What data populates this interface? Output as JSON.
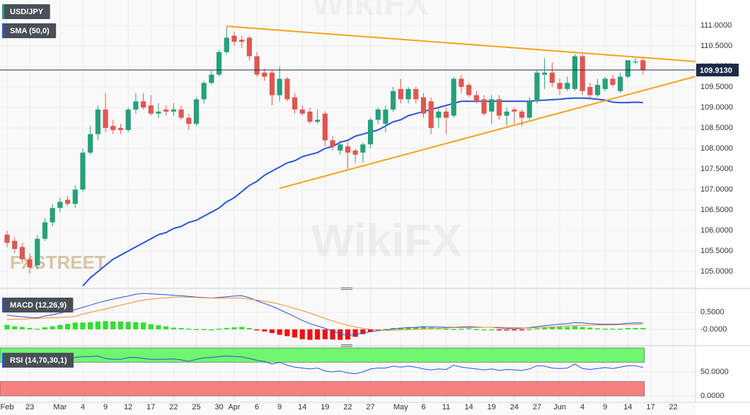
{
  "chart_data": {
    "type": "candlestick",
    "title": "USD/JPY",
    "up_color": "#26a07c",
    "down_color": "#e0574f",
    "categories": [
      "Feb",
      null,
      null,
      "23",
      null,
      null,
      null,
      "Mar",
      null,
      null,
      "4",
      null,
      null,
      "9",
      null,
      null,
      "12",
      null,
      null,
      "17",
      null,
      null,
      "22",
      null,
      null,
      "25",
      null,
      null,
      "30",
      null,
      "Apr",
      null,
      null,
      "6",
      null,
      null,
      "9",
      null,
      null,
      "14",
      null,
      null,
      "19",
      null,
      null,
      "22",
      null,
      null,
      "27",
      null,
      null,
      null,
      "May",
      null,
      null,
      "6",
      null,
      null,
      "11",
      null,
      null,
      "14",
      null,
      null,
      "19",
      null,
      null,
      "24",
      null,
      null,
      "27",
      null,
      null,
      "Jun",
      null,
      null,
      "4",
      null,
      null,
      "9",
      null,
      null,
      "14",
      null,
      null,
      "17",
      null,
      null,
      "22"
    ],
    "open": [
      105.9,
      105.75,
      105.6,
      105.3,
      105.15,
      105.8,
      106.2,
      106.55,
      106.75,
      106.65,
      107.0,
      107.9,
      108.35,
      108.95,
      108.55,
      108.5,
      108.45,
      108.95,
      109.15,
      109.05,
      108.85,
      108.95,
      108.9,
      108.95,
      108.75,
      108.6,
      109.2,
      109.6,
      109.8,
      110.35,
      110.75,
      110.65,
      110.7,
      110.25,
      109.85,
      109.85,
      109.3,
      109.7,
      109.25,
      108.95,
      108.9,
      108.65,
      108.85,
      108.2,
      107.95,
      108.05,
      107.95,
      107.9,
      108.1,
      108.7,
      108.6,
      108.95,
      109.45,
      109.2,
      109.45,
      109.25,
      109.15,
      108.75,
      108.9,
      108.8,
      109.7,
      109.55,
      109.3,
      109.2,
      108.9,
      109.2,
      108.8,
      108.95,
      108.9,
      108.75,
      109.15,
      109.8,
      109.85,
      109.6,
      109.45,
      109.45,
      110.25,
      109.5,
      109.3,
      109.45,
      109.7,
      109.4,
      109.75,
      110.1,
      110.15,
      null,
      null,
      null,
      null
    ],
    "high": [
      106.0,
      105.85,
      105.7,
      105.45,
      105.9,
      106.3,
      106.65,
      106.8,
      106.85,
      107.1,
      108.0,
      108.55,
      109.05,
      109.35,
      108.7,
      108.6,
      109.0,
      109.35,
      109.35,
      109.3,
      109.1,
      109.05,
      109.1,
      109.05,
      108.85,
      109.25,
      109.65,
      109.9,
      110.4,
      110.97,
      110.85,
      110.75,
      110.75,
      110.35,
      109.95,
      109.9,
      110.0,
      109.75,
      109.35,
      109.05,
      109.0,
      108.95,
      108.9,
      108.3,
      108.2,
      108.15,
      108.0,
      108.15,
      108.75,
      109.0,
      109.05,
      109.5,
      109.7,
      109.5,
      109.5,
      109.35,
      109.25,
      109.0,
      109.0,
      109.75,
      109.8,
      109.6,
      109.4,
      109.3,
      109.3,
      109.3,
      109.0,
      109.0,
      108.95,
      109.25,
      109.9,
      110.2,
      110.1,
      109.7,
      109.75,
      110.3,
      110.3,
      109.6,
      109.7,
      109.75,
      109.8,
      109.85,
      110.15,
      110.2,
      110.2,
      null,
      null,
      null,
      null
    ],
    "low": [
      105.6,
      105.45,
      105.2,
      104.95,
      105.05,
      105.75,
      106.1,
      106.45,
      106.6,
      106.55,
      106.95,
      107.85,
      108.2,
      108.4,
      108.35,
      108.35,
      108.4,
      108.85,
      108.95,
      108.8,
      108.75,
      108.8,
      108.8,
      108.7,
      108.45,
      108.55,
      109.1,
      109.55,
      109.75,
      110.3,
      110.5,
      110.45,
      110.15,
      109.75,
      109.65,
      109.05,
      109.15,
      109.15,
      108.85,
      108.8,
      108.6,
      108.6,
      108.05,
      107.95,
      107.85,
      107.5,
      107.65,
      107.65,
      108.0,
      108.6,
      108.4,
      108.9,
      109.1,
      109.1,
      109.1,
      108.75,
      108.35,
      108.5,
      108.35,
      108.75,
      109.35,
      109.25,
      109.1,
      108.8,
      108.6,
      108.7,
      108.55,
      108.6,
      108.55,
      108.7,
      109.1,
      109.45,
      109.5,
      109.3,
      109.4,
      109.4,
      109.3,
      109.2,
      109.25,
      109.4,
      109.5,
      109.35,
      109.7,
      110.05,
      109.8,
      null,
      null,
      null,
      null
    ],
    "close": [
      105.7,
      105.55,
      105.3,
      105.1,
      105.8,
      106.2,
      106.55,
      106.7,
      106.65,
      107.0,
      107.9,
      108.35,
      108.95,
      108.5,
      108.45,
      108.45,
      108.95,
      109.15,
      109.0,
      108.85,
      108.9,
      108.9,
      108.95,
      108.75,
      108.6,
      109.2,
      109.6,
      109.8,
      110.35,
      110.7,
      110.6,
      110.6,
      110.25,
      109.8,
      109.75,
      109.3,
      109.7,
      109.2,
      108.95,
      108.85,
      108.65,
      108.7,
      108.2,
      108.05,
      108.1,
      107.9,
      107.85,
      108.1,
      108.7,
      108.95,
      108.95,
      109.4,
      109.2,
      109.45,
      109.2,
      108.85,
      108.5,
      108.9,
      108.75,
      109.7,
      109.5,
      109.3,
      109.15,
      108.85,
      109.2,
      108.8,
      108.9,
      108.9,
      108.75,
      109.15,
      109.85,
      109.85,
      109.6,
      109.45,
      109.6,
      110.25,
      109.4,
      109.3,
      109.55,
      109.7,
      109.55,
      109.75,
      110.15,
      110.12,
      109.913,
      null,
      null,
      null,
      null
    ],
    "ylim": [
      104.64,
      111.62
    ],
    "yticks": [
      {
        "value": 105,
        "label": "105.0000"
      },
      {
        "value": 105.5,
        "label": "105.5000"
      },
      {
        "value": 106,
        "label": "106.0000"
      },
      {
        "value": 106.5,
        "label": "106.5000"
      },
      {
        "value": 107,
        "label": "107.0000"
      },
      {
        "value": 107.5,
        "label": "107.5000"
      },
      {
        "value": 108,
        "label": "108.0000"
      },
      {
        "value": 108.5,
        "label": "108.5000"
      },
      {
        "value": 109,
        "label": "109.0000"
      },
      {
        "value": 109.5,
        "label": "109.5000"
      },
      {
        "value": 110,
        "label": "110.0000"
      },
      {
        "value": 110.5,
        "label": "110.5000"
      },
      {
        "value": 111,
        "label": "111.0000"
      }
    ],
    "last_price": {
      "value": 109.913,
      "label": "109.9130"
    },
    "overlays": [
      {
        "name": "SMA (50,0)",
        "color": "#2a55d6",
        "values": [
          null,
          null,
          null,
          null,
          null,
          null,
          null,
          null,
          null,
          null,
          104.65,
          104.85,
          105.0,
          105.15,
          105.3,
          105.4,
          105.5,
          105.6,
          105.7,
          105.8,
          105.9,
          105.95,
          106.05,
          106.1,
          106.2,
          106.25,
          106.35,
          106.45,
          106.55,
          106.7,
          106.8,
          106.95,
          107.1,
          107.2,
          107.35,
          107.45,
          107.55,
          107.65,
          107.7,
          107.8,
          107.85,
          107.9,
          108.0,
          108.05,
          108.15,
          108.2,
          108.3,
          108.35,
          108.4,
          108.45,
          108.55,
          108.65,
          108.7,
          108.8,
          108.85,
          108.9,
          108.95,
          109.0,
          109.05,
          109.1,
          109.15,
          109.15,
          109.15,
          109.15,
          109.15,
          109.15,
          109.15,
          109.15,
          109.15,
          109.15,
          109.17,
          109.18,
          109.19,
          109.2,
          109.22,
          109.23,
          109.23,
          109.22,
          109.2,
          109.18,
          109.13,
          109.12,
          109.12,
          109.13,
          109.12,
          null,
          null,
          null,
          null
        ]
      }
    ],
    "trendlines": [
      {
        "color": "#f5a21e",
        "x": [
          29,
          91
        ],
        "y": [
          110.98,
          110.12
        ]
      },
      {
        "color": "#f5a21e",
        "x": [
          36,
          91
        ],
        "y": [
          107.03,
          109.76
        ]
      }
    ],
    "watermarks": [
      "WikiFX",
      "FXSTREET"
    ],
    "indicators": [
      {
        "type": "macd",
        "name": "MACD (12,26,9)",
        "ylim": [
          -0.44,
          1.12
        ],
        "yticks": [
          {
            "value": 0.5,
            "label": "0.5000"
          },
          {
            "value": 0,
            "label": "-0.0000"
          }
        ],
        "series": [
          {
            "color": "#2b4fd6",
            "values": [
              0.42,
              0.39,
              0.37,
              0.35,
              0.34,
              0.39,
              0.43,
              0.48,
              0.52,
              0.58,
              0.65,
              0.71,
              0.78,
              0.84,
              0.89,
              0.94,
              0.98,
              1.03,
              1.06,
              1.04,
              1.03,
              1.02,
              1.0,
              0.99,
              0.97,
              0.95,
              0.94,
              0.92,
              0.94,
              0.96,
              0.98,
              0.99,
              0.93,
              0.84,
              0.76,
              0.68,
              0.58,
              0.48,
              0.37,
              0.26,
              0.17,
              0.1,
              0.03,
              -0.05,
              -0.13,
              -0.18,
              -0.15,
              -0.11,
              -0.07,
              -0.04,
              -0.02,
              0.01,
              0.03,
              0.05,
              0.06,
              0.08,
              0.07,
              0.07,
              0.06,
              0.06,
              0.07,
              0.08,
              0.07,
              0.06,
              0.06,
              0.04,
              0.03,
              0.02,
              0.03,
              0.05,
              0.08,
              0.11,
              0.13,
              0.15,
              0.17,
              0.2,
              0.19,
              0.17,
              0.16,
              0.15,
              0.15,
              0.16,
              0.18,
              0.19,
              0.19,
              null,
              null,
              null,
              null
            ]
          },
          {
            "color": "#f08a30",
            "values": [
              0.29,
              0.3,
              0.3,
              0.31,
              0.32,
              0.33,
              0.34,
              0.35,
              0.36,
              0.38,
              0.45,
              0.5,
              0.55,
              0.6,
              0.66,
              0.71,
              0.76,
              0.82,
              0.86,
              0.89,
              0.91,
              0.93,
              0.95,
              0.95,
              0.95,
              0.94,
              0.93,
              0.92,
              0.92,
              0.92,
              0.92,
              0.92,
              0.89,
              0.86,
              0.82,
              0.79,
              0.74,
              0.68,
              0.61,
              0.55,
              0.48,
              0.4,
              0.32,
              0.25,
              0.18,
              0.12,
              0.07,
              0.03,
              0.0,
              -0.02,
              -0.03,
              -0.03,
              -0.02,
              -0.01,
              0.0,
              0.01,
              0.02,
              0.03,
              0.04,
              0.05,
              0.05,
              0.05,
              0.06,
              0.06,
              0.06,
              0.06,
              0.05,
              0.05,
              0.04,
              0.04,
              0.05,
              0.06,
              0.07,
              0.08,
              0.1,
              0.11,
              0.12,
              0.12,
              0.13,
              0.13,
              0.13,
              0.14,
              0.14,
              0.15,
              0.15,
              null,
              null,
              null,
              null
            ]
          }
        ],
        "histogram": {
          "up_color": "#33dd33",
          "down_color": "#ee1111",
          "values": [
            0.13,
            0.09,
            0.07,
            0.04,
            0.02,
            0.06,
            0.09,
            0.13,
            0.16,
            0.2,
            0.2,
            0.21,
            0.23,
            0.24,
            0.23,
            0.23,
            0.22,
            0.21,
            0.2,
            0.15,
            0.12,
            0.09,
            0.05,
            0.04,
            0.02,
            0.01,
            0.01,
            0.0,
            0.02,
            0.04,
            0.06,
            0.07,
            0.04,
            -0.02,
            -0.06,
            -0.11,
            -0.16,
            -0.2,
            -0.24,
            -0.29,
            -0.31,
            -0.3,
            -0.29,
            -0.3,
            -0.31,
            -0.3,
            -0.22,
            -0.14,
            -0.07,
            -0.02,
            0.01,
            0.04,
            0.05,
            0.06,
            0.06,
            0.07,
            0.05,
            0.04,
            0.02,
            0.01,
            0.02,
            0.03,
            0.01,
            0.0,
            0.0,
            -0.02,
            -0.02,
            -0.03,
            -0.01,
            0.01,
            0.03,
            0.05,
            0.06,
            0.07,
            0.07,
            0.09,
            0.07,
            0.05,
            0.03,
            0.02,
            0.02,
            0.02,
            0.04,
            0.04,
            0.04,
            null,
            null,
            null,
            null
          ]
        }
      },
      {
        "type": "rsi",
        "name": "RSI (14,70,30,1)",
        "ylim": [
          -12,
          100
        ],
        "yticks": [
          {
            "value": 50,
            "label": "50.0000"
          },
          {
            "value": 0,
            "label": "0.0000"
          }
        ],
        "bands": [
          {
            "from": 70,
            "to": 100,
            "color": "#6ff56f"
          },
          {
            "from": 0,
            "to": 30,
            "color": "#f78080"
          }
        ],
        "series": [
          {
            "color": "#2b4fd6",
            "values": [
              74,
              72,
              66,
              60,
              66,
              72,
              76,
              78,
              77,
              80,
              82,
              82,
              83,
              78,
              76,
              76,
              80,
              80,
              78,
              76,
              76,
              76,
              77,
              75,
              72,
              76,
              79,
              80,
              82,
              83,
              82,
              81,
              78,
              74,
              72,
              66,
              70,
              64,
              60,
              58,
              56,
              58,
              52,
              50,
              52,
              48,
              46,
              50,
              56,
              58,
              58,
              62,
              60,
              62,
              60,
              56,
              54,
              56,
              55,
              64,
              60,
              58,
              56,
              54,
              56,
              53,
              55,
              54,
              53,
              56,
              63,
              62,
              58,
              57,
              58,
              66,
              57,
              55,
              57,
              59,
              57,
              60,
              63,
              63,
              59,
              null,
              null,
              null,
              null
            ]
          }
        ]
      }
    ]
  }
}
